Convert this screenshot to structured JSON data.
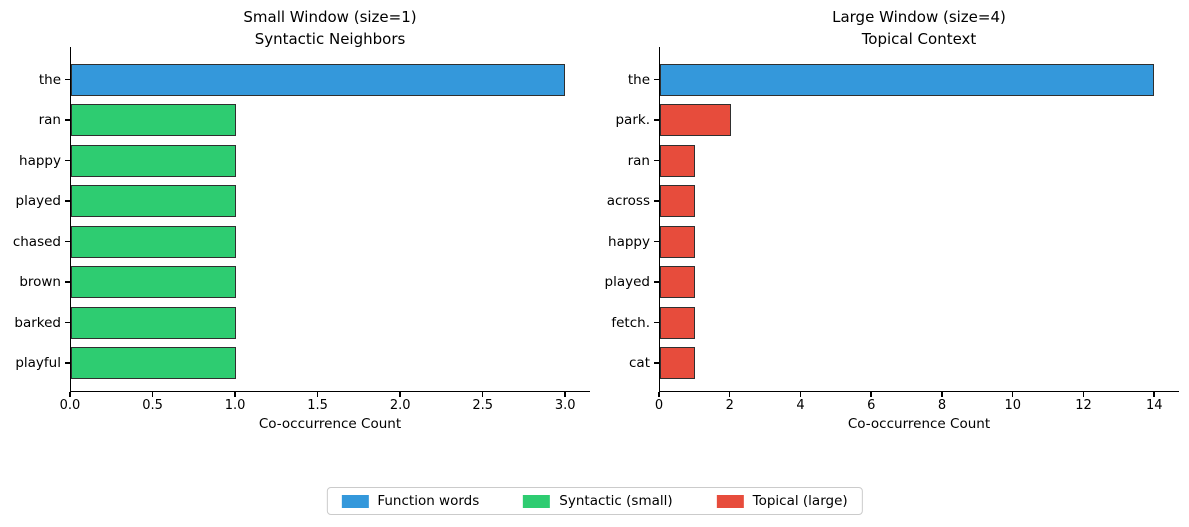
{
  "figure": {
    "background": "#ffffff",
    "text_color": "#000000",
    "bar_edge_color": "#2f2f2f"
  },
  "chart_data": [
    {
      "type": "bar",
      "orientation": "horizontal",
      "title_line1": "Small Window (size=1)",
      "title_line2": "Syntactic Neighbors",
      "categories": [
        "the",
        "ran",
        "happy",
        "played",
        "chased",
        "brown",
        "barked",
        "playful"
      ],
      "values": [
        3,
        1,
        1,
        1,
        1,
        1,
        1,
        1
      ],
      "bar_colors": [
        "#3498db",
        "#2ecc71",
        "#2ecc71",
        "#2ecc71",
        "#2ecc71",
        "#2ecc71",
        "#2ecc71",
        "#2ecc71"
      ],
      "xlabel": "Co-occurrence Count",
      "xlim": [
        0,
        3.15
      ],
      "xtick_values": [
        0,
        0.5,
        1,
        1.5,
        2,
        2.5,
        3
      ],
      "xtick_labels": [
        "0.0",
        "0.5",
        "1.0",
        "1.5",
        "2.0",
        "2.5",
        "3.0"
      ],
      "grid": false
    },
    {
      "type": "bar",
      "orientation": "horizontal",
      "title_line1": "Large Window (size=4)",
      "title_line2": "Topical Context",
      "categories": [
        "the",
        "park.",
        "ran",
        "across",
        "happy",
        "played",
        "fetch.",
        "cat"
      ],
      "values": [
        14,
        2,
        1,
        1,
        1,
        1,
        1,
        1
      ],
      "bar_colors": [
        "#3498db",
        "#e74c3c",
        "#e74c3c",
        "#e74c3c",
        "#e74c3c",
        "#e74c3c",
        "#e74c3c",
        "#e74c3c"
      ],
      "xlabel": "Co-occurrence Count",
      "xlim": [
        0,
        14.7
      ],
      "xtick_values": [
        0,
        2,
        4,
        6,
        8,
        10,
        12,
        14
      ],
      "xtick_labels": [
        "0",
        "2",
        "4",
        "6",
        "8",
        "10",
        "12",
        "14"
      ],
      "grid": false
    }
  ],
  "legend": {
    "position": "bottom-center",
    "items": [
      {
        "label": "Function words",
        "color": "#3498db"
      },
      {
        "label": "Syntactic (small)",
        "color": "#2ecc71"
      },
      {
        "label": "Topical (large)",
        "color": "#e74c3c"
      }
    ]
  }
}
